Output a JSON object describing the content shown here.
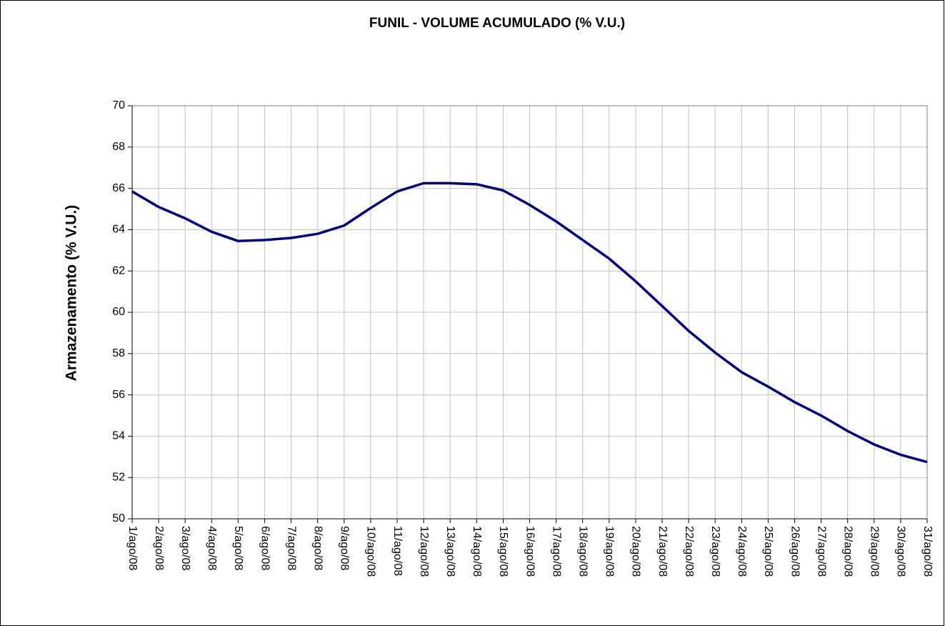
{
  "chart_data": {
    "type": "line",
    "title": "FUNIL - VOLUME ACUMULADO (% V.U.)",
    "y_label": "Armazenamento (% V.U.)",
    "categories": [
      "1/ago/08",
      "2/ago/08",
      "3/ago/08",
      "4/ago/08",
      "5/ago/08",
      "6/ago/08",
      "7/ago/08",
      "8/ago/08",
      "9/ago/08",
      "10/ago/08",
      "11/ago/08",
      "12/ago/08",
      "13/ago/08",
      "14/ago/08",
      "15/ago/08",
      "16/ago/08",
      "17/ago/08",
      "18/ago/08",
      "19/ago/08",
      "20/ago/08",
      "21/ago/08",
      "22/ago/08",
      "23/ago/08",
      "24/ago/08",
      "25/ago/08",
      "26/ago/08",
      "27/ago/08",
      "28/ago/08",
      "29/ago/08",
      "30/ago/08",
      "31/ago/08"
    ],
    "values": [
      65.85,
      65.1,
      64.55,
      63.9,
      63.45,
      63.5,
      63.6,
      63.8,
      64.2,
      65.05,
      65.85,
      66.25,
      66.25,
      66.2,
      65.9,
      65.2,
      64.4,
      63.5,
      62.6,
      61.5,
      60.3,
      59.1,
      58.05,
      57.1,
      56.4,
      55.65,
      55.0,
      54.25,
      53.6,
      53.1,
      52.75
    ],
    "color": "#000080",
    "ylim": [
      50,
      70
    ],
    "yticks": [
      50,
      52,
      54,
      56,
      58,
      60,
      62,
      64,
      66,
      68,
      70
    ],
    "grid": true
  }
}
